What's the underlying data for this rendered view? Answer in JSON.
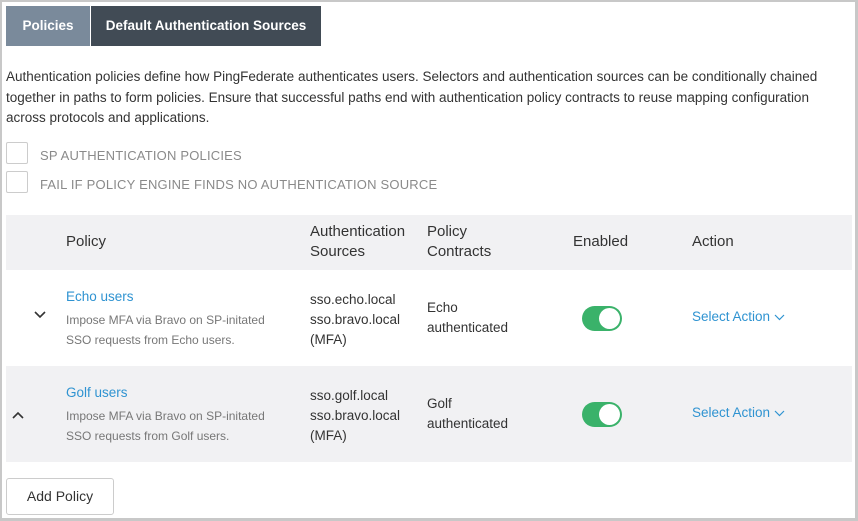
{
  "tabs": [
    {
      "label": "Policies"
    },
    {
      "label": "Default Authentication Sources"
    }
  ],
  "description": "Authentication policies define how PingFederate authenticates users. Selectors and authentication sources can be conditionally chained together in paths to form policies. Ensure that successful paths end with authentication policy contracts to reuse mapping configuration across protocols and applications.",
  "checkboxes": [
    {
      "label": "SP AUTHENTICATION POLICIES",
      "checked": false
    },
    {
      "label": "FAIL IF POLICY ENGINE FINDS NO AUTHENTICATION SOURCE",
      "checked": false
    }
  ],
  "table": {
    "headers": {
      "policy": "Policy",
      "sources_1": "Authentication",
      "sources_2": "Sources",
      "contracts_1": "Policy",
      "contracts_2": "Contracts",
      "enabled": "Enabled",
      "action": "Action"
    },
    "rows": [
      {
        "expand_icon": "chevron-down",
        "name": "Echo users",
        "desc_1": "Impose MFA via Bravo on SP-initated",
        "desc_2": "SSO requests from Echo users.",
        "src_1": "sso.echo.local",
        "src_2": "sso.bravo.local",
        "src_3": "(MFA)",
        "contract_1": "Echo",
        "contract_2": "authenticated",
        "enabled": true,
        "action": "Select Action"
      },
      {
        "expand_icon": "chevron-up",
        "name": "Golf users",
        "desc_1": "Impose MFA via Bravo on SP-initated",
        "desc_2": "SSO requests from Golf users.",
        "src_1": "sso.golf.local",
        "src_2": "sso.bravo.local",
        "src_3": "(MFA)",
        "contract_1": "Golf",
        "contract_2": "authenticated",
        "enabled": true,
        "action": "Select Action"
      }
    ]
  },
  "add_button": "Add Policy",
  "colors": {
    "link": "#2f93d1",
    "toggle_on": "#3ab26a",
    "tab_active": "#7a8a9b",
    "tab_inactive": "#414b55"
  }
}
